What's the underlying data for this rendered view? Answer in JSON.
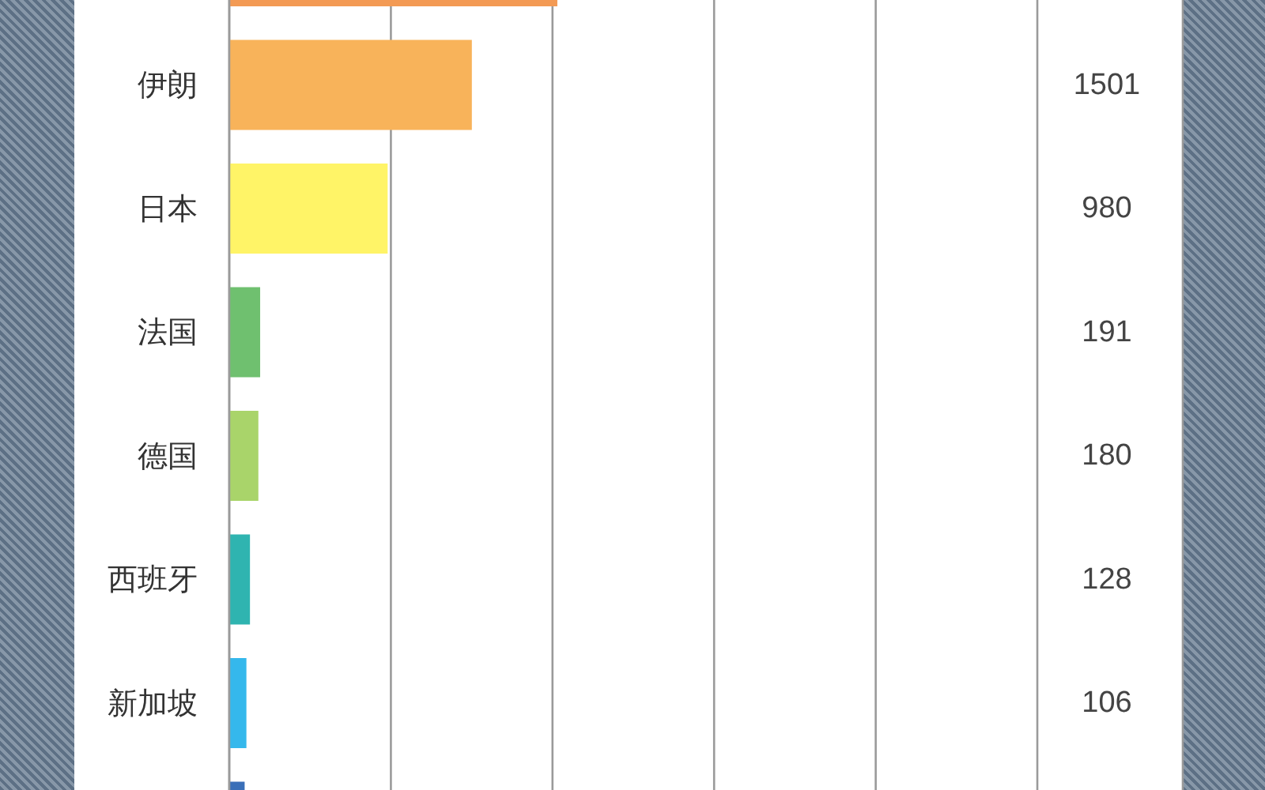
{
  "chart_data": {
    "type": "bar",
    "orientation": "horizontal",
    "categories": [
      null,
      "伊朗",
      "日本",
      "法国",
      "德国",
      "西班牙",
      "新加坡",
      null
    ],
    "values": [
      2030,
      1501,
      980,
      191,
      180,
      128,
      106,
      95
    ],
    "colors": [
      "#f39a54",
      "#f8b35a",
      "#fff467",
      "#6fc06f",
      "#a9d46a",
      "#2fb4b0",
      "#35b8ec",
      "#3a6fb8"
    ],
    "value_labels": [
      null,
      "1501",
      "980",
      "191",
      "180",
      "128",
      "106",
      null
    ],
    "xlim": [
      0,
      5900
    ],
    "xticks": [
      {
        "value": 1000,
        "label": null
      },
      {
        "value": 2000,
        "label": null
      },
      {
        "value": 3000,
        "label": null
      },
      {
        "value": 4000,
        "label": null
      },
      {
        "value": 5000,
        "label": null
      }
    ],
    "grid": "x",
    "tick_labels": "y"
  }
}
